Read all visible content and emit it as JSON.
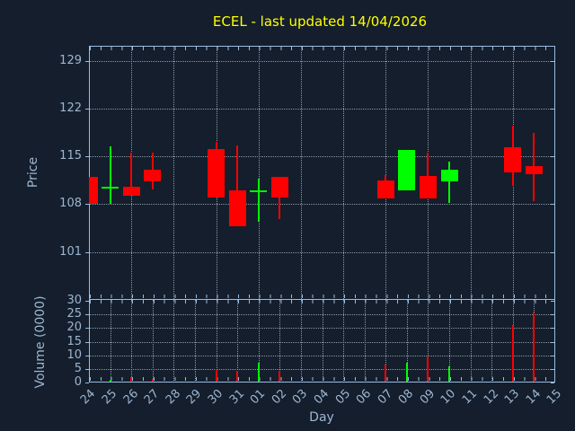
{
  "colors": {
    "background": "#141e2c",
    "axis": "#9cbcdf",
    "text": "#9db6d2",
    "grid": "#93a0ae",
    "up": "#00ff00",
    "down": "#ff0000",
    "title": "#ffff00"
  },
  "chart_data": [
    {
      "type": "candlestick",
      "title": "ECEL - last updated 14/04/2026",
      "ylabel": "Price",
      "xlabel": "Day",
      "ylim": [
        94.0,
        131.2
      ],
      "yticks": [
        101,
        108,
        115,
        122,
        129
      ],
      "x_categories": [
        "24",
        "25",
        "26",
        "27",
        "28",
        "29",
        "30",
        "31",
        "01",
        "02",
        "03",
        "04",
        "05",
        "06",
        "07",
        "08",
        "09",
        "10",
        "11",
        "12",
        "13",
        "14",
        "15"
      ],
      "grid": {
        "style": "dotted",
        "horizontal_at": "yticks",
        "vertical_every_days": 2,
        "legend": "none"
      },
      "candles": [
        {
          "day": "24",
          "open": 112.0,
          "high": 112.0,
          "low": 108.0,
          "close": 108.0,
          "direction": "down"
        },
        {
          "day": "25",
          "open": 110.4,
          "high": 116.5,
          "low": 108.0,
          "close": 110.5,
          "direction": "up"
        },
        {
          "day": "26",
          "open": 110.6,
          "high": 115.5,
          "low": 109.3,
          "close": 109.3,
          "direction": "down"
        },
        {
          "day": "27",
          "open": 113.0,
          "high": 115.6,
          "low": 110.2,
          "close": 111.3,
          "direction": "down"
        },
        {
          "day": "30",
          "open": 116.1,
          "high": 117.1,
          "low": 109.0,
          "close": 109.0,
          "direction": "down"
        },
        {
          "day": "31",
          "open": 110.0,
          "high": 116.6,
          "low": 104.8,
          "close": 104.8,
          "direction": "down"
        },
        {
          "day": "01",
          "open": 109.9,
          "high": 111.7,
          "low": 105.5,
          "close": 110.0,
          "direction": "up"
        },
        {
          "day": "02",
          "open": 112.0,
          "high": 112.0,
          "low": 105.8,
          "close": 109.0,
          "direction": "down"
        },
        {
          "day": "07",
          "open": 111.5,
          "high": 112.3,
          "low": 108.8,
          "close": 108.8,
          "direction": "down"
        },
        {
          "day": "08",
          "open": 110.0,
          "high": 116.0,
          "low": 110.0,
          "close": 116.0,
          "direction": "up"
        },
        {
          "day": "09",
          "open": 112.1,
          "high": 115.6,
          "low": 108.8,
          "close": 108.8,
          "direction": "down"
        },
        {
          "day": "10",
          "open": 111.4,
          "high": 114.3,
          "low": 108.2,
          "close": 113.1,
          "direction": "up"
        },
        {
          "day": "13",
          "open": 116.3,
          "high": 119.5,
          "low": 110.7,
          "close": 112.6,
          "direction": "down"
        },
        {
          "day": "14",
          "open": 113.6,
          "high": 118.4,
          "low": 108.4,
          "close": 112.4,
          "direction": "down"
        }
      ]
    },
    {
      "type": "bar",
      "ylabel": "Volume (0000)",
      "xlabel": "Day",
      "ylim": [
        0,
        30.4
      ],
      "yticks": [
        0,
        5,
        10,
        15,
        20,
        25,
        30
      ],
      "grid": {
        "style": "dotted",
        "horizontal_at": "yticks",
        "vertical_every_days": 1,
        "legend": "none"
      },
      "bars": [
        {
          "day": "25",
          "value": 1.0,
          "direction": "up"
        },
        {
          "day": "26",
          "value": 2.0,
          "direction": "down"
        },
        {
          "day": "27",
          "value": 1.3,
          "direction": "down"
        },
        {
          "day": "30",
          "value": 4.8,
          "direction": "down"
        },
        {
          "day": "31",
          "value": 4.4,
          "direction": "down"
        },
        {
          "day": "01",
          "value": 7.2,
          "direction": "up"
        },
        {
          "day": "02",
          "value": 4.2,
          "direction": "down"
        },
        {
          "day": "07",
          "value": 6.5,
          "direction": "down"
        },
        {
          "day": "08",
          "value": 7.4,
          "direction": "up"
        },
        {
          "day": "09",
          "value": 9.5,
          "direction": "down"
        },
        {
          "day": "10",
          "value": 5.9,
          "direction": "up"
        },
        {
          "day": "13",
          "value": 21.2,
          "direction": "down"
        },
        {
          "day": "14",
          "value": 25.7,
          "direction": "down"
        }
      ]
    }
  ]
}
